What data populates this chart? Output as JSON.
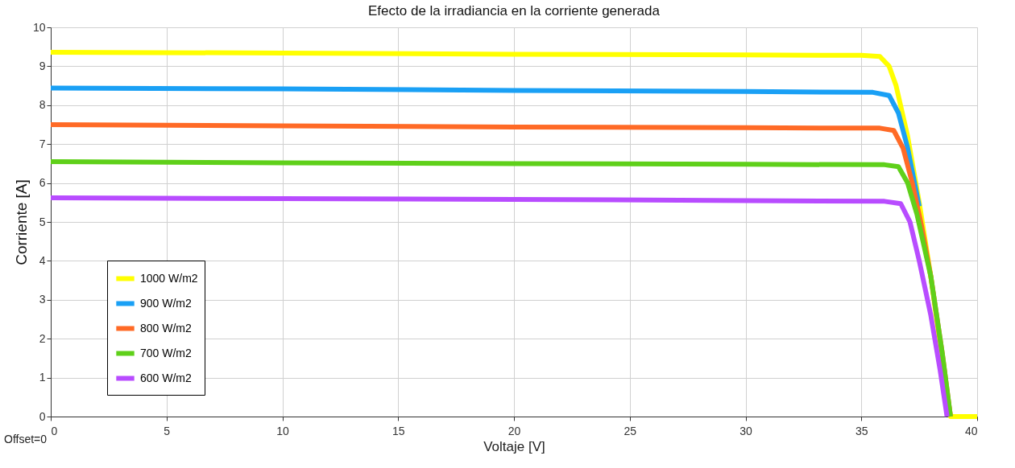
{
  "chart_data": {
    "type": "line",
    "title": "Efecto de la irradiancia en la corriente generada",
    "xlabel": "Voltaje [V]",
    "ylabel": "Corriente [A]",
    "xlim": [
      0,
      40
    ],
    "ylim": [
      0,
      10
    ],
    "xticks": [
      0,
      5,
      10,
      15,
      20,
      25,
      30,
      35,
      40
    ],
    "yticks": [
      0,
      1,
      2,
      3,
      4,
      5,
      6,
      7,
      8,
      9,
      10
    ],
    "grid": true,
    "legend": "left",
    "line_style": "solid",
    "marker": "none",
    "annotations": [
      "Offset=0"
    ],
    "series": [
      {
        "name": "1000 W/m2",
        "color": "#ffff00",
        "x": [
          0,
          10,
          20,
          30,
          35,
          35.8,
          36.2,
          36.5,
          37,
          37.5,
          38,
          38.5,
          38.85,
          40
        ],
        "values": [
          9.36,
          9.34,
          9.31,
          9.29,
          9.28,
          9.25,
          9.0,
          8.5,
          7.2,
          5.5,
          3.6,
          1.4,
          0,
          0
        ]
      },
      {
        "name": "900 W/m2",
        "color": "#1aa0f5",
        "x": [
          0,
          10,
          20,
          30,
          35.5,
          36.2,
          36.6,
          37,
          37.5
        ],
        "values": [
          8.44,
          8.42,
          8.38,
          8.35,
          8.33,
          8.25,
          7.8,
          6.9,
          5.4
        ]
      },
      {
        "name": "800 W/m2",
        "color": "#ff6a26",
        "x": [
          0,
          10,
          20,
          30,
          35.8,
          36.4,
          36.8,
          37.2,
          37.6,
          38,
          38.5,
          38.85
        ],
        "values": [
          7.5,
          7.47,
          7.44,
          7.42,
          7.41,
          7.35,
          6.9,
          6.0,
          4.9,
          3.6,
          1.6,
          0
        ]
      },
      {
        "name": "700 W/m2",
        "color": "#5fd01a",
        "x": [
          0,
          10,
          20,
          30,
          36,
          36.6,
          37,
          37.4,
          38,
          38.5,
          38.85
        ],
        "values": [
          6.55,
          6.52,
          6.5,
          6.48,
          6.47,
          6.42,
          6.0,
          5.2,
          3.6,
          1.6,
          0
        ]
      },
      {
        "name": "600 W/m2",
        "color": "#b84cff",
        "x": [
          0,
          10,
          20,
          30,
          36,
          36.7,
          37.1,
          37.5,
          38,
          38.4,
          38.7
        ],
        "values": [
          5.62,
          5.6,
          5.58,
          5.55,
          5.53,
          5.47,
          5.0,
          4.0,
          2.6,
          1.2,
          0
        ]
      }
    ]
  }
}
